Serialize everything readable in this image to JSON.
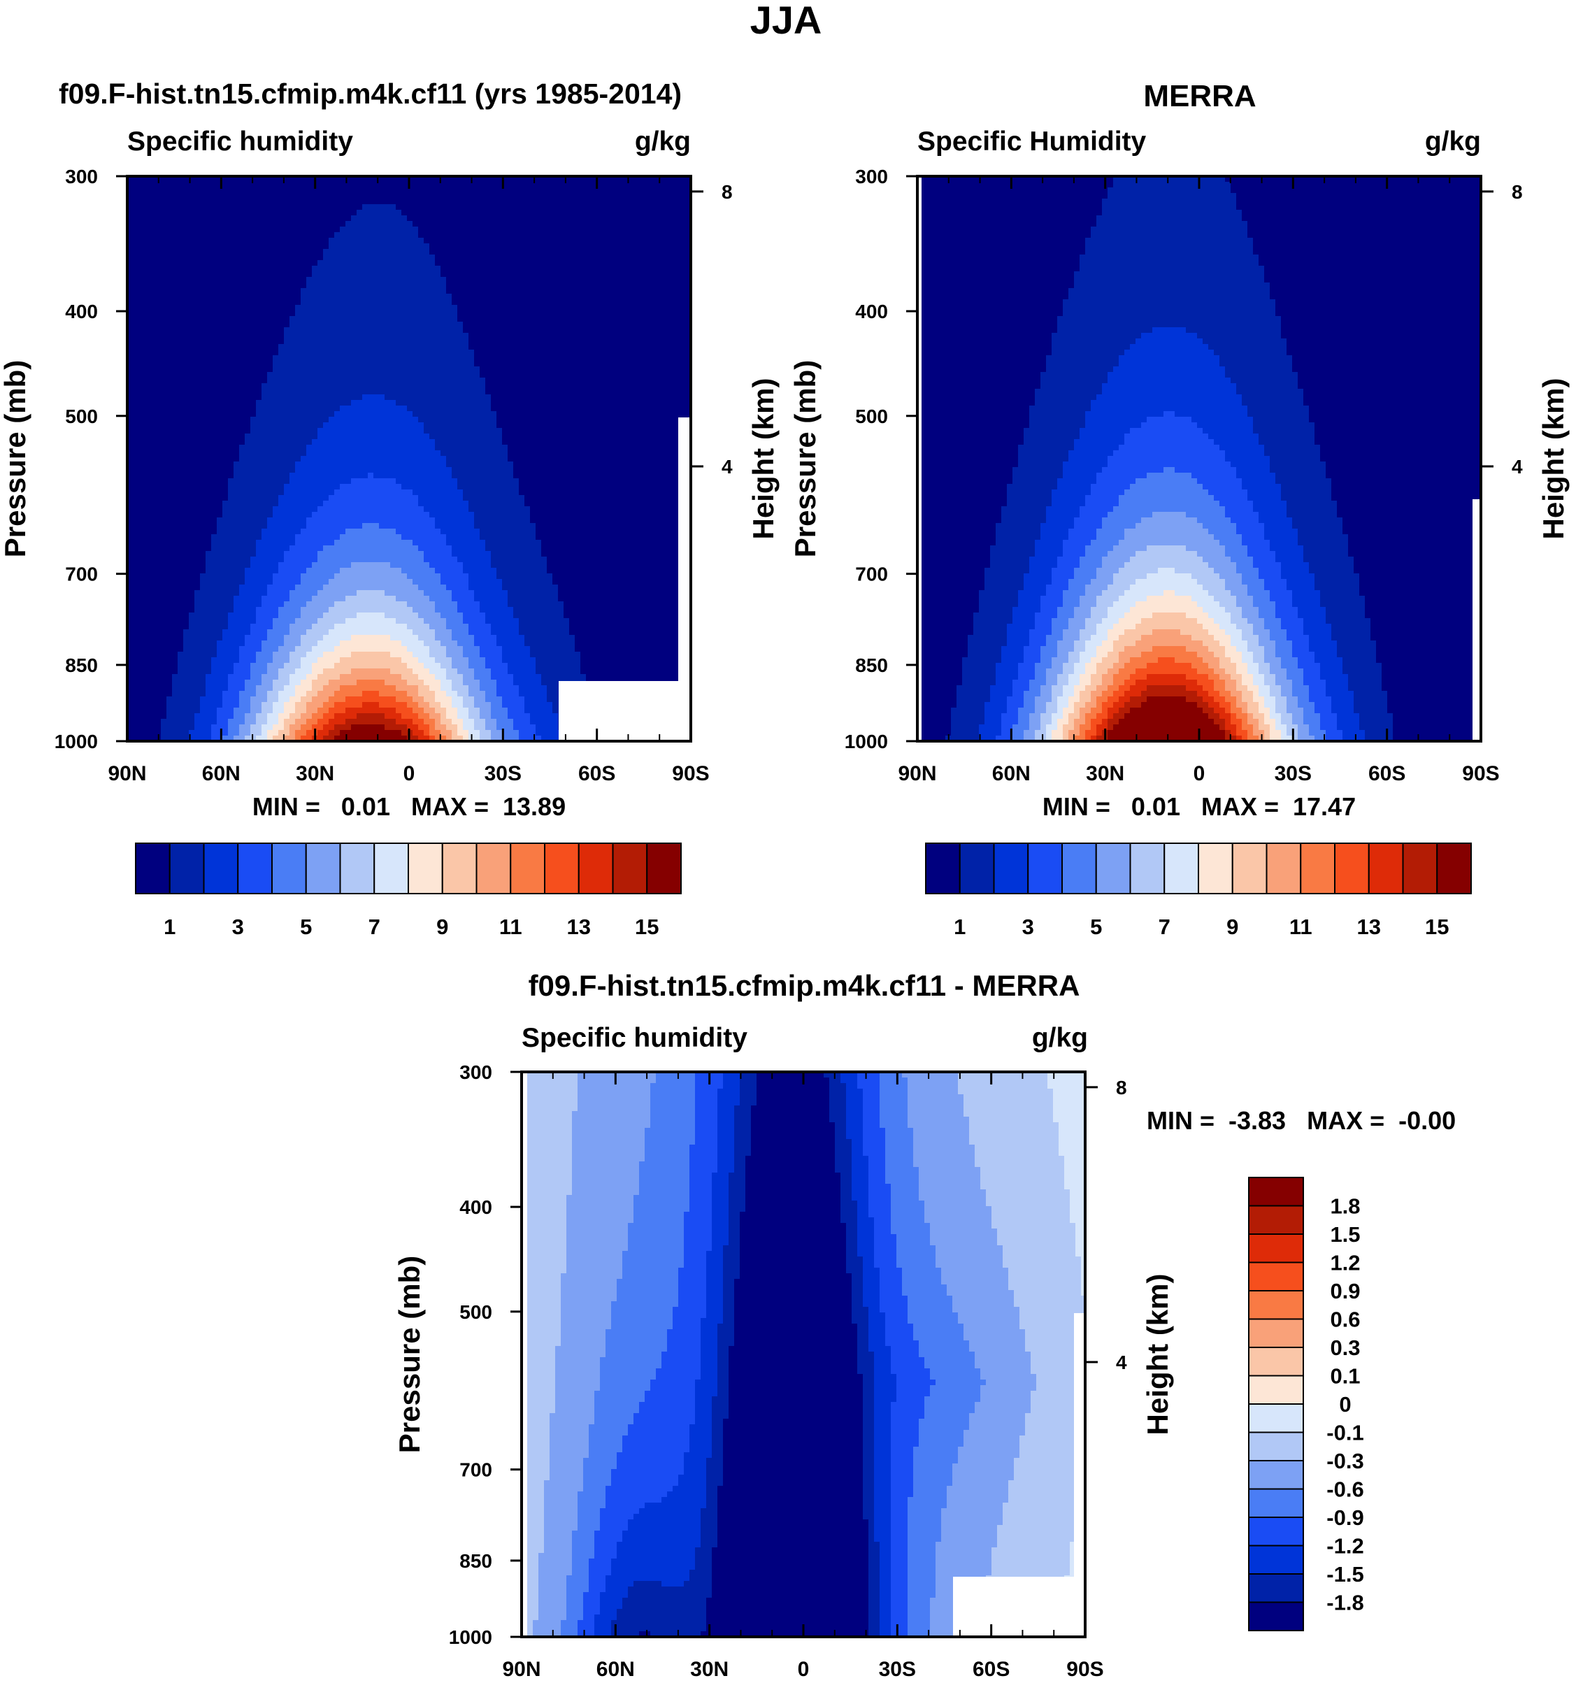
{
  "figure_title": "JJA",
  "palettes": {
    "abs": [
      "#00007f",
      "#0022a8",
      "#0034d8",
      "#1a4cf4",
      "#4a7df5",
      "#7da1f4",
      "#b1c8f6",
      "#d7e6fb",
      "#fde6d6",
      "#fac6a8",
      "#f9a179",
      "#f97a44",
      "#f64f1d",
      "#de2b08",
      "#b31c05",
      "#850000"
    ],
    "diff": [
      "#00007f",
      "#0022a8",
      "#0034d8",
      "#1a4cf4",
      "#4a7df5",
      "#7da1f4",
      "#b1c8f6",
      "#d7e6fb",
      "#fde6d6",
      "#fac6a8",
      "#f9a179",
      "#f97a44",
      "#f64f1d",
      "#de2b08",
      "#b31c05",
      "#850000"
    ]
  },
  "panels": [
    {
      "id": "model",
      "header": "f09.F-hist.tn15.cfmip.m4k.cf11 (yrs 1985-2014)",
      "left_label": "Specific humidity",
      "right_label": "g/kg",
      "stats": "MIN =   0.01   MAX =  13.89",
      "ylabel": "Pressure (mb)",
      "ylabel2": "Height (km)"
    },
    {
      "id": "obs",
      "header": "MERRA",
      "left_label": "Specific Humidity",
      "right_label": "g/kg",
      "stats": "MIN =   0.01   MAX =  17.47",
      "ylabel": "Pressure (mb)",
      "ylabel2": "Height (km)"
    },
    {
      "id": "diff",
      "header": "f09.F-hist.tn15.cfmip.m4k.cf11 - MERRA",
      "left_label": "Specific humidity",
      "right_label": "g/kg",
      "stats": "MIN =  -3.83   MAX =  -0.00",
      "ylabel": "Pressure (mb)",
      "ylabel2": "Height (km)"
    }
  ],
  "chart_data": [
    {
      "type": "heatmap",
      "subtype": "filled-contour pressure-latitude cross section",
      "title": "f09.F-hist.tn15.cfmip.m4k.cf11 (yrs 1985-2014)",
      "variable": "Specific humidity",
      "units": "g/kg",
      "xlabel": "",
      "x_ticks": [
        "90N",
        "60N",
        "30N",
        "0",
        "30S",
        "60S",
        "90S"
      ],
      "x_range": [
        90,
        -90
      ],
      "ylabel": "Pressure (mb)",
      "y_ticks": [
        300,
        400,
        500,
        700,
        850,
        1000
      ],
      "y_range": [
        1000,
        300
      ],
      "ylabel2": "Height (km)",
      "y2_ticks": [
        8,
        4
      ],
      "min": 0.01,
      "max": 13.89,
      "contour_levels": [
        1,
        2,
        3,
        4,
        5,
        6,
        7,
        8,
        9,
        10,
        11,
        12,
        13,
        14,
        15
      ],
      "colorbar_labels": [
        "1",
        "3",
        "5",
        "7",
        "9",
        "11",
        "13",
        "15"
      ],
      "peak_latitude": 10,
      "missing_region": "Antarctic surface below ~900 mb (60S-90S)"
    },
    {
      "type": "heatmap",
      "subtype": "filled-contour pressure-latitude cross section",
      "title": "MERRA",
      "variable": "Specific Humidity",
      "units": "g/kg",
      "x_ticks": [
        "90N",
        "60N",
        "30N",
        "0",
        "30S",
        "60S",
        "90S"
      ],
      "x_range": [
        90,
        -90
      ],
      "ylabel": "Pressure (mb)",
      "y_ticks": [
        300,
        400,
        500,
        700,
        850,
        1000
      ],
      "y_range": [
        1000,
        300
      ],
      "ylabel2": "Height (km)",
      "y2_ticks": [
        8,
        4
      ],
      "min": 0.01,
      "max": 17.47,
      "contour_levels": [
        1,
        2,
        3,
        4,
        5,
        6,
        7,
        8,
        9,
        10,
        11,
        12,
        13,
        14,
        15
      ],
      "colorbar_labels": [
        "1",
        "3",
        "5",
        "7",
        "9",
        "11",
        "13",
        "15"
      ],
      "peak_latitude": 10
    },
    {
      "type": "heatmap",
      "subtype": "filled-contour pressure-latitude cross section (difference)",
      "title": "f09.F-hist.tn15.cfmip.m4k.cf11 - MERRA",
      "variable": "Specific humidity",
      "units": "g/kg",
      "x_ticks": [
        "90N",
        "60N",
        "30N",
        "0",
        "30S",
        "60S",
        "90S"
      ],
      "x_range": [
        90,
        -90
      ],
      "ylabel": "Pressure (mb)",
      "y_ticks": [
        300,
        400,
        500,
        700,
        850,
        1000
      ],
      "y_range": [
        1000,
        300
      ],
      "ylabel2": "Height (km)",
      "y2_ticks": [
        8,
        4
      ],
      "min": -3.83,
      "max": -0.0,
      "contour_levels": [
        -1.8,
        -1.5,
        -1.2,
        -0.9,
        -0.6,
        -0.3,
        -0.1,
        0,
        0.1,
        0.3,
        0.6,
        0.9,
        1.2,
        1.5,
        1.8
      ],
      "colorbar_labels": [
        "1.8",
        "1.5",
        "1.2",
        "0.9",
        "0.6",
        "0.3",
        "0.1",
        "0",
        "-0.1",
        "-0.3",
        "-0.6",
        "-0.9",
        "-1.2",
        "-1.5",
        "-1.8"
      ],
      "missing_region": "Antarctic surface below ~900 mb (60S-90S)"
    }
  ]
}
